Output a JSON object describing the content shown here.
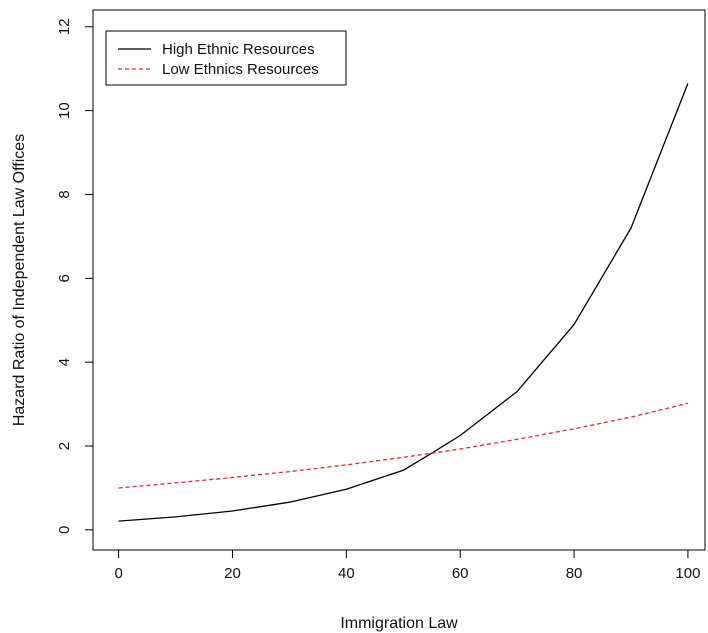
{
  "chart_data": {
    "type": "line",
    "title": "",
    "xlabel": "Immigration Law",
    "ylabel": "Hazard Ratio of Independent Law Offices",
    "xlim": [
      -4.5,
      103
    ],
    "ylim": [
      -0.48,
      12.4
    ],
    "x_ticks": [
      0,
      20,
      40,
      60,
      80,
      100
    ],
    "y_ticks": [
      0,
      2,
      4,
      6,
      8,
      10,
      12
    ],
    "grid": false,
    "legend_position": "top-left",
    "series": [
      {
        "name": "High Ethnic Resources",
        "color": "#000000",
        "line_style": "solid",
        "x": [
          0,
          10,
          20,
          30,
          40,
          50,
          55,
          60,
          70,
          80,
          90,
          100
        ],
        "y": [
          0.21,
          0.31,
          0.45,
          0.66,
          0.97,
          1.42,
          1.83,
          2.25,
          3.3,
          4.9,
          7.2,
          10.65
        ]
      },
      {
        "name": "Low Ethnics Resources",
        "color": "#e8262a",
        "line_style": "dashed",
        "x": [
          0,
          10,
          20,
          30,
          40,
          50,
          55,
          60,
          70,
          80,
          90,
          100
        ],
        "y": [
          1.0,
          1.12,
          1.25,
          1.39,
          1.55,
          1.73,
          1.83,
          1.93,
          2.16,
          2.41,
          2.69,
          3.02
        ]
      }
    ]
  }
}
